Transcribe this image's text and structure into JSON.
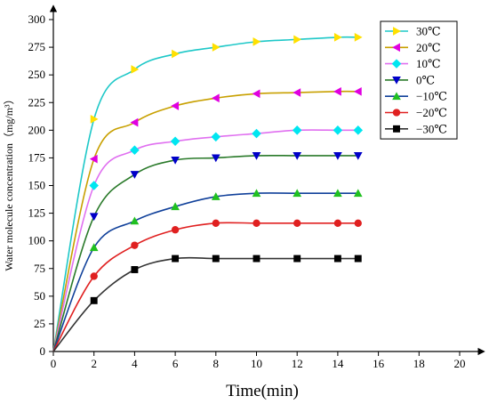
{
  "chart_data": {
    "type": "line",
    "xlabel": "Time(min)",
    "ylabel": "Water molecule concentration（mg/m³）",
    "xlim": [
      0,
      20
    ],
    "ylim": [
      0,
      300
    ],
    "x_ticks": [
      "0",
      "2",
      "4",
      "6",
      "8",
      "10",
      "12",
      "14",
      "16",
      "18",
      "20"
    ],
    "y_ticks": [
      "0",
      "25",
      "50",
      "75",
      "100",
      "125",
      "150",
      "175",
      "200",
      "225",
      "250",
      "275",
      "300"
    ],
    "grid": false,
    "legend_position": "top-right",
    "x": [
      2,
      4,
      6,
      8,
      10,
      12,
      14,
      15
    ],
    "series": [
      {
        "name": "30℃",
        "marker": "triangle-right",
        "color": "#1ec8c8",
        "values": [
          210,
          255,
          269,
          275,
          280,
          282,
          284,
          284
        ]
      },
      {
        "name": "20℃",
        "marker": "triangle-left",
        "color": "#c8a000",
        "values": [
          174,
          207,
          222,
          229,
          233,
          234,
          235,
          235
        ]
      },
      {
        "name": "10℃",
        "marker": "diamond",
        "color": "#e070f0",
        "values": [
          150,
          182,
          190,
          194,
          197,
          200,
          200,
          200
        ]
      },
      {
        "name": "0℃",
        "marker": "triangle-down",
        "color": "#2a7a2a",
        "values": [
          122,
          160,
          173,
          175,
          177,
          177,
          177,
          177
        ]
      },
      {
        "name": "−10℃",
        "marker": "triangle-up",
        "color": "#10409a",
        "values": [
          94,
          118,
          131,
          140,
          143,
          143,
          143,
          143
        ]
      },
      {
        "name": "−20℃",
        "marker": "circle",
        "color": "#e02020",
        "values": [
          68,
          96,
          110,
          116,
          116,
          116,
          116,
          116
        ]
      },
      {
        "name": "−30℃",
        "marker": "square",
        "color": "#333333",
        "values": [
          46,
          74,
          84,
          84,
          84,
          84,
          84,
          84
        ]
      }
    ],
    "marker_colors": {
      "triangle-right": "#ffe000",
      "triangle-left": "#e000e0",
      "diamond": "#00e6f0",
      "triangle-down": "#0000c8",
      "triangle-up": "#20c020",
      "circle": "#e02020",
      "square": "#000000"
    }
  }
}
